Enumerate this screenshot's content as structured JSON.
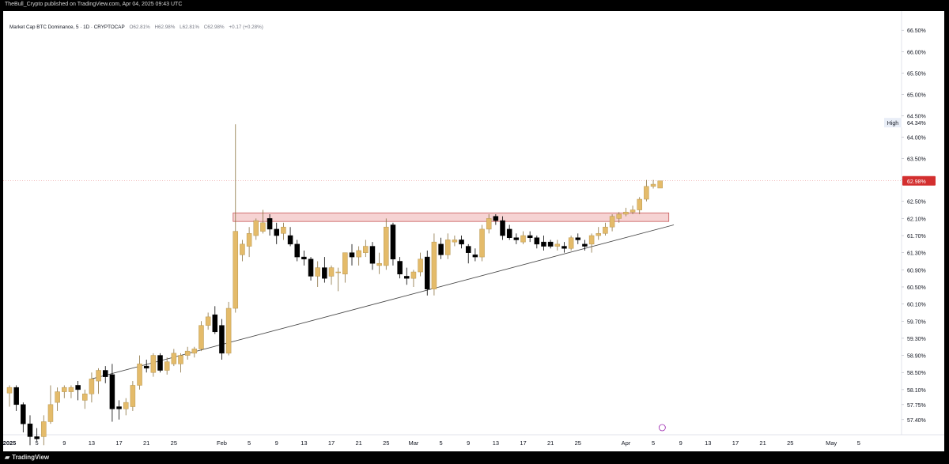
{
  "header": {
    "publisher_line": "TheBull_Crypto published on TradingView.com, Apr 04, 2025 09:43 UTC"
  },
  "legend": {
    "symbol": "Market Cap BTC Dominance, 5 · 1D · CRYPTOCAP",
    "open": "O62.81%",
    "high": "H62.98%",
    "low": "L62.81%",
    "close": "C62.98%",
    "change": "+0.17 (+0.28%)"
  },
  "footer": {
    "brand": "TradingView"
  },
  "colors": {
    "bull": "#e4bb6a",
    "bear": "#000000",
    "zone_fill": "#f6d3d3",
    "zone_stroke": "#c95a5a",
    "trendline": "#444444",
    "price_tag_bg": "#d32f2f",
    "high_tag_bg": "#e9eef7"
  },
  "chart_data": {
    "type": "candlestick",
    "title": "Market Cap BTC Dominance, 5 · 1D · CRYPTOCAP",
    "ylim": [
      57.1,
      66.8
    ],
    "y_ticks": [
      "57.40%",
      "57.75%",
      "58.10%",
      "58.50%",
      "58.90%",
      "59.30%",
      "59.70%",
      "60.10%",
      "60.50%",
      "60.90%",
      "61.30%",
      "61.70%",
      "62.10%",
      "62.50%",
      "63.00%",
      "63.50%",
      "64.00%",
      "64.50%",
      "65.00%",
      "65.50%",
      "66.00%",
      "66.50%"
    ],
    "x_ticks": [
      "2025",
      "5",
      "9",
      "13",
      "17",
      "21",
      "25",
      "Feb",
      "5",
      "9",
      "13",
      "17",
      "21",
      "25",
      "Mar",
      "5",
      "9",
      "13",
      "17",
      "21",
      "25",
      "Apr",
      "5",
      "9",
      "13",
      "17",
      "21",
      "25",
      "May",
      "5"
    ],
    "x_range_days": [
      -1,
      125
    ],
    "candles": [
      {
        "d": 0,
        "o": 58.02,
        "h": 58.2,
        "l": 57.7,
        "c": 58.15
      },
      {
        "d": 1,
        "o": 58.15,
        "h": 58.2,
        "l": 57.6,
        "c": 57.75
      },
      {
        "d": 2,
        "o": 57.75,
        "h": 57.8,
        "l": 57.1,
        "c": 57.3
      },
      {
        "d": 3,
        "o": 57.3,
        "h": 57.5,
        "l": 56.8,
        "c": 57.0
      },
      {
        "d": 4,
        "o": 57.0,
        "h": 57.2,
        "l": 56.9,
        "c": 56.95
      },
      {
        "d": 5,
        "o": 57.0,
        "h": 57.5,
        "l": 56.8,
        "c": 57.35
      },
      {
        "d": 6,
        "o": 57.35,
        "h": 58.2,
        "l": 57.3,
        "c": 57.75
      },
      {
        "d": 7,
        "o": 57.8,
        "h": 58.15,
        "l": 57.6,
        "c": 58.05
      },
      {
        "d": 8,
        "o": 58.05,
        "h": 58.2,
        "l": 57.9,
        "c": 58.15
      },
      {
        "d": 9,
        "o": 58.05,
        "h": 58.2,
        "l": 57.9,
        "c": 58.15
      },
      {
        "d": 10,
        "o": 58.2,
        "h": 58.3,
        "l": 57.85,
        "c": 58.1
      },
      {
        "d": 11,
        "o": 57.85,
        "h": 58.1,
        "l": 57.65,
        "c": 58.0
      },
      {
        "d": 12,
        "o": 58.0,
        "h": 58.5,
        "l": 57.8,
        "c": 58.35
      },
      {
        "d": 13,
        "o": 58.3,
        "h": 58.6,
        "l": 58.0,
        "c": 58.55
      },
      {
        "d": 14,
        "o": 58.55,
        "h": 58.65,
        "l": 58.25,
        "c": 58.4
      },
      {
        "d": 15,
        "o": 58.45,
        "h": 58.7,
        "l": 57.35,
        "c": 57.65
      },
      {
        "d": 16,
        "o": 57.7,
        "h": 57.85,
        "l": 57.4,
        "c": 57.65
      },
      {
        "d": 17,
        "o": 57.65,
        "h": 57.9,
        "l": 57.5,
        "c": 57.8
      },
      {
        "d": 18,
        "o": 57.7,
        "h": 58.3,
        "l": 57.6,
        "c": 58.2
      },
      {
        "d": 19,
        "o": 58.2,
        "h": 58.9,
        "l": 58.1,
        "c": 58.7
      },
      {
        "d": 20,
        "o": 58.65,
        "h": 58.8,
        "l": 58.5,
        "c": 58.6
      },
      {
        "d": 21,
        "o": 58.5,
        "h": 58.95,
        "l": 58.4,
        "c": 58.9
      },
      {
        "d": 22,
        "o": 58.9,
        "h": 58.95,
        "l": 58.5,
        "c": 58.55
      },
      {
        "d": 23,
        "o": 58.55,
        "h": 58.85,
        "l": 58.45,
        "c": 58.75
      },
      {
        "d": 24,
        "o": 58.7,
        "h": 59.05,
        "l": 58.65,
        "c": 58.95
      },
      {
        "d": 25,
        "o": 58.7,
        "h": 58.95,
        "l": 58.5,
        "c": 58.9
      },
      {
        "d": 26,
        "o": 58.9,
        "h": 59.1,
        "l": 58.8,
        "c": 59.0
      },
      {
        "d": 27,
        "o": 58.95,
        "h": 59.1,
        "l": 58.85,
        "c": 59.05
      },
      {
        "d": 28,
        "o": 59.05,
        "h": 59.7,
        "l": 59.0,
        "c": 59.6
      },
      {
        "d": 29,
        "o": 59.6,
        "h": 59.9,
        "l": 59.5,
        "c": 59.8
      },
      {
        "d": 30,
        "o": 59.85,
        "h": 60.05,
        "l": 59.4,
        "c": 59.45
      },
      {
        "d": 31,
        "o": 59.6,
        "h": 59.75,
        "l": 58.8,
        "c": 58.95
      },
      {
        "d": 32,
        "o": 58.95,
        "h": 60.15,
        "l": 58.9,
        "c": 60.0
      },
      {
        "d": 33,
        "o": 60.0,
        "h": 64.3,
        "l": 59.9,
        "c": 61.8
      },
      {
        "d": 34,
        "o": 61.25,
        "h": 61.6,
        "l": 61.1,
        "c": 61.5
      },
      {
        "d": 35,
        "o": 61.45,
        "h": 61.9,
        "l": 61.2,
        "c": 61.75
      },
      {
        "d": 36,
        "o": 61.7,
        "h": 62.1,
        "l": 61.6,
        "c": 62.05
      },
      {
        "d": 37,
        "o": 61.8,
        "h": 62.3,
        "l": 61.75,
        "c": 62.0
      },
      {
        "d": 38,
        "o": 62.1,
        "h": 62.2,
        "l": 61.7,
        "c": 61.85
      },
      {
        "d": 39,
        "o": 61.85,
        "h": 62.0,
        "l": 61.5,
        "c": 61.7
      },
      {
        "d": 40,
        "o": 61.75,
        "h": 62.0,
        "l": 61.6,
        "c": 61.9
      },
      {
        "d": 41,
        "o": 61.7,
        "h": 61.9,
        "l": 61.45,
        "c": 61.5
      },
      {
        "d": 42,
        "o": 61.5,
        "h": 61.6,
        "l": 61.1,
        "c": 61.2
      },
      {
        "d": 43,
        "o": 61.2,
        "h": 61.35,
        "l": 61.0,
        "c": 61.15
      },
      {
        "d": 44,
        "o": 61.15,
        "h": 61.2,
        "l": 60.65,
        "c": 60.75
      },
      {
        "d": 45,
        "o": 60.75,
        "h": 61.1,
        "l": 60.5,
        "c": 60.95
      },
      {
        "d": 46,
        "o": 60.95,
        "h": 61.2,
        "l": 60.6,
        "c": 60.7
      },
      {
        "d": 47,
        "o": 60.75,
        "h": 61.0,
        "l": 60.55,
        "c": 60.95
      },
      {
        "d": 48,
        "o": 60.85,
        "h": 60.95,
        "l": 60.4,
        "c": 60.85
      },
      {
        "d": 49,
        "o": 60.8,
        "h": 61.3,
        "l": 60.6,
        "c": 61.3
      },
      {
        "d": 50,
        "o": 61.3,
        "h": 61.5,
        "l": 61.0,
        "c": 61.2
      },
      {
        "d": 51,
        "o": 61.2,
        "h": 61.45,
        "l": 61.0,
        "c": 61.35
      },
      {
        "d": 52,
        "o": 61.3,
        "h": 61.6,
        "l": 61.2,
        "c": 61.45
      },
      {
        "d": 53,
        "o": 61.45,
        "h": 61.55,
        "l": 60.9,
        "c": 61.05
      },
      {
        "d": 54,
        "o": 61.0,
        "h": 61.3,
        "l": 60.8,
        "c": 61.05
      },
      {
        "d": 55,
        "o": 61.0,
        "h": 62.1,
        "l": 60.9,
        "c": 61.9
      },
      {
        "d": 56,
        "o": 61.95,
        "h": 62.0,
        "l": 61.0,
        "c": 61.15
      },
      {
        "d": 57,
        "o": 61.1,
        "h": 61.2,
        "l": 60.7,
        "c": 60.8
      },
      {
        "d": 58,
        "o": 60.75,
        "h": 60.95,
        "l": 60.55,
        "c": 60.7
      },
      {
        "d": 59,
        "o": 60.7,
        "h": 60.9,
        "l": 60.5,
        "c": 60.85
      },
      {
        "d": 60,
        "o": 60.85,
        "h": 61.3,
        "l": 60.75,
        "c": 61.15
      },
      {
        "d": 61,
        "o": 61.2,
        "h": 61.35,
        "l": 60.3,
        "c": 60.45
      },
      {
        "d": 62,
        "o": 60.45,
        "h": 61.75,
        "l": 60.3,
        "c": 61.55
      },
      {
        "d": 63,
        "o": 61.5,
        "h": 61.65,
        "l": 61.15,
        "c": 61.25
      },
      {
        "d": 64,
        "o": 61.25,
        "h": 61.75,
        "l": 61.15,
        "c": 61.6
      },
      {
        "d": 65,
        "o": 61.55,
        "h": 61.7,
        "l": 61.45,
        "c": 61.6
      },
      {
        "d": 66,
        "o": 61.6,
        "h": 61.7,
        "l": 61.4,
        "c": 61.5
      },
      {
        "d": 67,
        "o": 61.45,
        "h": 61.5,
        "l": 61.05,
        "c": 61.3
      },
      {
        "d": 68,
        "o": 61.25,
        "h": 61.4,
        "l": 61.1,
        "c": 61.2
      },
      {
        "d": 69,
        "o": 61.2,
        "h": 61.95,
        "l": 61.1,
        "c": 61.85
      },
      {
        "d": 70,
        "o": 61.85,
        "h": 62.2,
        "l": 61.75,
        "c": 62.1
      },
      {
        "d": 71,
        "o": 62.15,
        "h": 62.2,
        "l": 61.95,
        "c": 62.05
      },
      {
        "d": 72,
        "o": 62.05,
        "h": 62.15,
        "l": 61.6,
        "c": 61.7
      },
      {
        "d": 73,
        "o": 61.85,
        "h": 61.95,
        "l": 61.6,
        "c": 61.65
      },
      {
        "d": 74,
        "o": 61.65,
        "h": 61.75,
        "l": 61.5,
        "c": 61.6
      },
      {
        "d": 75,
        "o": 61.55,
        "h": 61.8,
        "l": 61.5,
        "c": 61.7
      },
      {
        "d": 76,
        "o": 61.7,
        "h": 61.8,
        "l": 61.55,
        "c": 61.65
      },
      {
        "d": 77,
        "o": 61.65,
        "h": 61.7,
        "l": 61.4,
        "c": 61.5
      },
      {
        "d": 78,
        "o": 61.55,
        "h": 61.7,
        "l": 61.35,
        "c": 61.45
      },
      {
        "d": 79,
        "o": 61.55,
        "h": 61.6,
        "l": 61.4,
        "c": 61.45
      },
      {
        "d": 80,
        "o": 61.45,
        "h": 61.6,
        "l": 61.35,
        "c": 61.5
      },
      {
        "d": 81,
        "o": 61.45,
        "h": 61.55,
        "l": 61.3,
        "c": 61.4
      },
      {
        "d": 82,
        "o": 61.4,
        "h": 61.7,
        "l": 61.35,
        "c": 61.65
      },
      {
        "d": 83,
        "o": 61.65,
        "h": 61.75,
        "l": 61.5,
        "c": 61.6
      },
      {
        "d": 84,
        "o": 61.5,
        "h": 61.6,
        "l": 61.35,
        "c": 61.45
      },
      {
        "d": 85,
        "o": 61.5,
        "h": 61.75,
        "l": 61.3,
        "c": 61.7
      },
      {
        "d": 86,
        "o": 61.7,
        "h": 61.9,
        "l": 61.6,
        "c": 61.75
      },
      {
        "d": 87,
        "o": 61.75,
        "h": 62.0,
        "l": 61.7,
        "c": 61.9
      },
      {
        "d": 88,
        "o": 61.9,
        "h": 62.2,
        "l": 61.8,
        "c": 62.15
      },
      {
        "d": 89,
        "o": 62.1,
        "h": 62.25,
        "l": 62.0,
        "c": 62.2
      },
      {
        "d": 90,
        "o": 62.2,
        "h": 62.35,
        "l": 62.15,
        "c": 62.25
      },
      {
        "d": 91,
        "o": 62.25,
        "h": 62.4,
        "l": 62.2,
        "c": 62.3
      },
      {
        "d": 92,
        "o": 62.3,
        "h": 62.6,
        "l": 62.2,
        "c": 62.55
      },
      {
        "d": 93,
        "o": 62.55,
        "h": 63.0,
        "l": 62.5,
        "c": 62.85
      },
      {
        "d": 94,
        "o": 62.85,
        "h": 63.0,
        "l": 62.8,
        "c": 62.9
      },
      {
        "d": 95,
        "o": 62.81,
        "h": 62.98,
        "l": 62.81,
        "c": 62.98
      }
    ],
    "resistance_zone": {
      "from_day": 33,
      "to_day": 95,
      "low": 62.03,
      "high": 62.23
    },
    "trendline": {
      "from": {
        "d": 12,
        "v": 58.35
      },
      "to": {
        "d": 97,
        "v": 61.95
      }
    },
    "spike_line": {
      "d": 33,
      "v": 64.3
    },
    "current_price": {
      "value": 62.98,
      "label": "62.98%"
    },
    "high_marker": {
      "value": 64.34,
      "label": "64.34%",
      "tag": "High"
    }
  }
}
